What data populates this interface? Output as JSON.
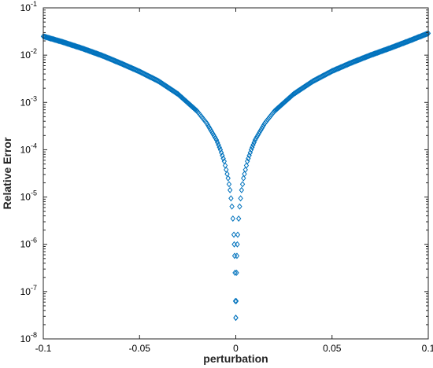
{
  "chart_data": {
    "type": "scatter",
    "title": "",
    "xlabel": "perturbation",
    "ylabel": "Relative Error",
    "xlim": [
      -0.1,
      0.1
    ],
    "ylim": [
      1e-08,
      0.1
    ],
    "yscale": "log",
    "x_ticks": [
      -0.1,
      -0.05,
      0,
      0.05,
      0.1
    ],
    "x_tick_labels": [
      "-0.1",
      "-0.05",
      "0",
      "0.05",
      "0.1"
    ],
    "y_tick_exponents": [
      -8,
      -7,
      -6,
      -5,
      -4,
      -3,
      -2,
      -1
    ],
    "y_tick_base": "10",
    "grid": false,
    "legend": false,
    "marker": "diamond",
    "marker_color": "#0072BD",
    "series": [
      {
        "x": [
          -0.1,
          -0.09,
          -0.08,
          -0.07,
          -0.06,
          -0.05,
          -0.04,
          -0.03,
          -0.02,
          -0.015,
          -0.01,
          -0.008,
          -0.006,
          -0.004,
          -0.003,
          -0.002,
          -0.0015,
          -0.001,
          -0.0008,
          -0.0006,
          -0.0004,
          -0.0002,
          0.0,
          0.0002,
          0.0004,
          0.0006,
          0.0008,
          0.001,
          0.0015,
          0.002,
          0.003,
          0.004,
          0.006,
          0.008,
          0.01,
          0.015,
          0.02,
          0.03,
          0.04,
          0.05,
          0.06,
          0.07,
          0.08,
          0.09,
          0.1
        ],
        "y": [
          0.025,
          0.019,
          0.014,
          0.01,
          0.0068,
          0.0045,
          0.0028,
          0.0015,
          0.00065,
          0.00036,
          0.00016,
          0.0001,
          5.7e-05,
          2.5e-05,
          1.4e-05,
          6.3e-06,
          3.5e-06,
          1.6e-06,
          1e-06,
          5.7e-07,
          2.5e-07,
          6.3e-08,
          2.8e-08,
          6.3e-08,
          2.5e-07,
          5.7e-07,
          1e-06,
          1.6e-06,
          3.5e-06,
          6.3e-06,
          1.4e-05,
          2.5e-05,
          5.7e-05,
          0.0001,
          0.00016,
          0.00036,
          0.00065,
          0.0015,
          0.0028,
          0.0046,
          0.0069,
          0.01,
          0.014,
          0.02,
          0.029
        ]
      }
    ]
  }
}
